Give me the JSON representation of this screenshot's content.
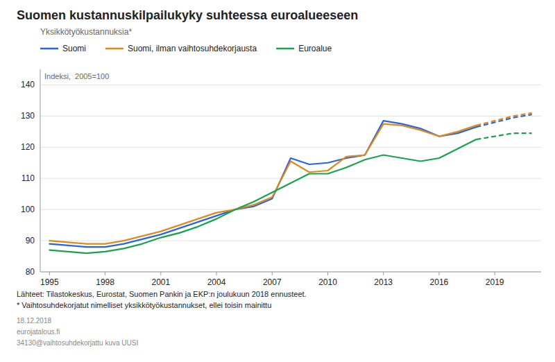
{
  "chart_data": {
    "type": "line",
    "title": "Suomen kustannuskilpailukyky suhteessa euroalueeseen",
    "subtitle": "Yksikkötyökustannuksia*",
    "ylabel": "Indeksi,  2005=100",
    "footnotes": [
      "Lähteet: Tilastokeskus, Eurostat, Suomen Pankin ja EKP:n joulukuun 2018 ennusteet.",
      "* Vaihtosuhdekorjatut nimelliset yksikkötyökustannukset, ellei toisin mainittu",
      "18.12.2018",
      "eurojatalous.fi",
      "34130@vaihtosuhdekorjattu kuva UUSI"
    ],
    "x": [
      1995,
      1996,
      1997,
      1998,
      1999,
      2000,
      2001,
      2002,
      2003,
      2004,
      2005,
      2006,
      2007,
      2008,
      2009,
      2010,
      2011,
      2012,
      2013,
      2014,
      2015,
      2016,
      2017,
      2018,
      2019,
      2020,
      2021
    ],
    "series": [
      {
        "name": "Suomi",
        "color": "#2563eb",
        "line_style": "solid",
        "values": [
          89.0,
          88.5,
          88.0,
          88.0,
          89.0,
          90.5,
          92.0,
          94.0,
          96.0,
          98.0,
          100.0,
          101.0,
          103.5,
          116.5,
          114.5,
          115.0,
          116.5,
          117.5,
          128.5,
          127.5,
          126.0,
          123.5,
          124.5,
          126.5,
          null,
          null,
          null
        ]
      },
      {
        "name": "Suomi, ilman vaihtosuhdekorjausta",
        "color": "#e0891a",
        "line_style": "solid",
        "values": [
          90.0,
          89.5,
          89.0,
          89.0,
          90.0,
          91.5,
          93.0,
          95.0,
          97.0,
          99.0,
          100.0,
          101.5,
          104.0,
          115.5,
          112.0,
          112.5,
          117.0,
          117.5,
          127.5,
          127.0,
          125.5,
          123.5,
          125.0,
          127.0,
          null,
          null,
          null
        ]
      },
      {
        "name": "Euroalue",
        "color": "#16a34a",
        "line_style": "solid",
        "values": [
          87.0,
          86.5,
          86.0,
          86.5,
          87.5,
          89.0,
          91.0,
          92.5,
          94.5,
          97.0,
          100.0,
          102.5,
          105.5,
          108.5,
          111.5,
          111.5,
          113.5,
          116.0,
          117.5,
          116.5,
          115.5,
          116.5,
          119.5,
          122.5,
          null,
          null,
          null
        ]
      },
      {
        "name": "Suomi",
        "color": "#2563eb",
        "line_style": "dashed",
        "values": [
          null,
          null,
          null,
          null,
          null,
          null,
          null,
          null,
          null,
          null,
          null,
          null,
          null,
          null,
          null,
          null,
          null,
          null,
          null,
          null,
          null,
          null,
          null,
          126.5,
          128.0,
          129.5,
          130.5
        ]
      },
      {
        "name": "Suomi, ilman vaihtosuhdekorjausta",
        "color": "#e0891a",
        "line_style": "dashed",
        "values": [
          null,
          null,
          null,
          null,
          null,
          null,
          null,
          null,
          null,
          null,
          null,
          null,
          null,
          null,
          null,
          null,
          null,
          null,
          null,
          null,
          null,
          null,
          null,
          127.0,
          128.5,
          130.0,
          131.0
        ]
      },
      {
        "name": "Euroalue",
        "color": "#16a34a",
        "line_style": "dashed",
        "values": [
          null,
          null,
          null,
          null,
          null,
          null,
          null,
          null,
          null,
          null,
          null,
          null,
          null,
          null,
          null,
          null,
          null,
          null,
          null,
          null,
          null,
          null,
          null,
          122.5,
          123.5,
          124.5,
          124.5
        ]
      }
    ],
    "xlim": [
      1994.5,
      2021.5
    ],
    "xticks": [
      1995,
      1998,
      2001,
      2004,
      2007,
      2010,
      2013,
      2016,
      2019
    ],
    "ylim": [
      80,
      145
    ],
    "yticks": [
      80,
      90,
      100,
      110,
      120,
      130,
      140
    ],
    "grid": true,
    "legend": "top"
  }
}
